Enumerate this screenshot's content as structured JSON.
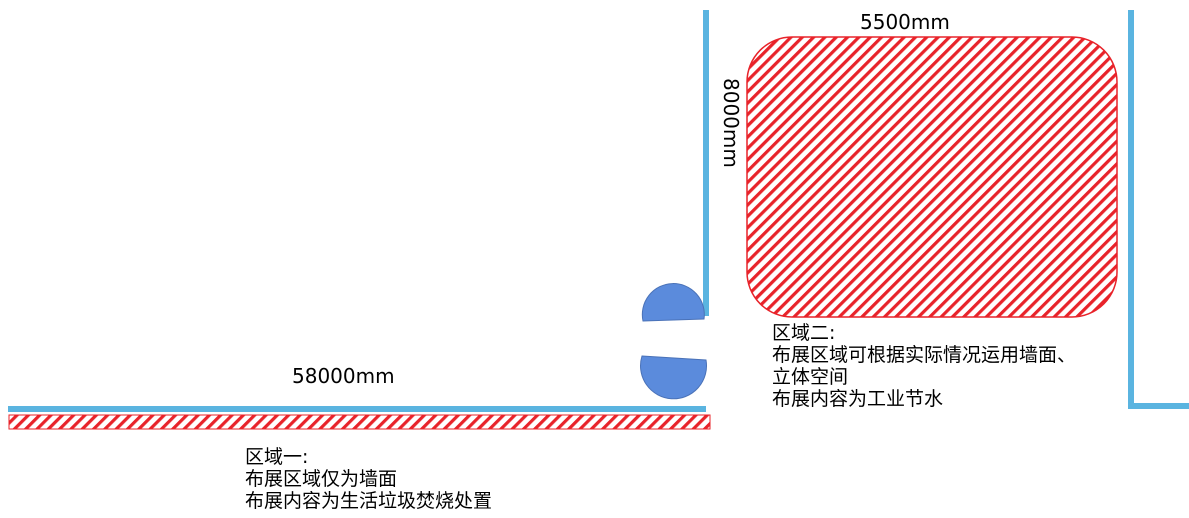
{
  "diagram": {
    "dimensions": {
      "width_top": "5500mm",
      "height_side": "8000mm",
      "length_bottom": "58000mm"
    },
    "zone1": {
      "title": "区域一:",
      "lines": [
        "布展区域仅为墙面",
        "布展内容为生活垃圾焚烧处置"
      ]
    },
    "zone2": {
      "title": "区域二:",
      "lines": [
        "布展区域可根据实际情况运用墙面、",
        "立体空间",
        "布展内容为工业节水"
      ]
    },
    "colors": {
      "wall": "#5ab4e0",
      "hatch": "#e8232a",
      "door": "#5b8bdc",
      "door_outline": "#4a72b8"
    }
  }
}
